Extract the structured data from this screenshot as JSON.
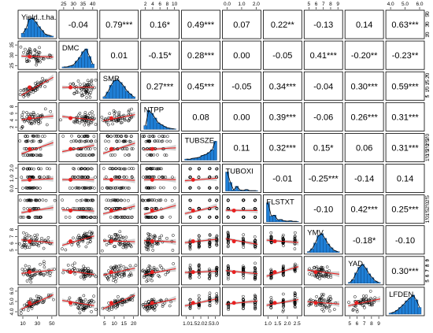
{
  "chart_data": {
    "type": "correlation-matrix",
    "variables": [
      "Yield..t.ha.",
      "DMC",
      "SMR",
      "NTPP",
      "TUBSZE",
      "TUBOXI",
      "FLSTXT",
      "YMV",
      "YAD",
      "LFDEN"
    ],
    "correlations": [
      [
        "",
        "-0.04",
        "0.79***",
        "0.16*",
        "0.49***",
        "0.07",
        "0.22**",
        "-0.13",
        "0.14",
        "0.63***"
      ],
      [
        "",
        "",
        "0.01",
        "-0.15*",
        "0.28***",
        "0.00",
        "-0.05",
        "0.41***",
        "-0.20**",
        "-0.23**"
      ],
      [
        "",
        "",
        "",
        "0.27***",
        "0.45***",
        "-0.05",
        "0.34***",
        "-0.04",
        "0.30***",
        "0.59***"
      ],
      [
        "",
        "",
        "",
        "",
        "0.08",
        "0.00",
        "0.39***",
        "-0.06",
        "0.26***",
        "0.31***"
      ],
      [
        "",
        "",
        "",
        "",
        "",
        "0.11",
        "0.32***",
        "0.15*",
        "0.06",
        "0.31***"
      ],
      [
        "",
        "",
        "",
        "",
        "",
        "",
        "-0.01",
        "-0.25***",
        "-0.14",
        "0.14"
      ],
      [
        "",
        "",
        "",
        "",
        "",
        "",
        "",
        "-0.10",
        "0.42***",
        "0.25***"
      ],
      [
        "",
        "",
        "",
        "",
        "",
        "",
        "",
        "",
        "-0.18*",
        "-0.10"
      ],
      [
        "",
        "",
        "",
        "",
        "",
        "",
        "",
        "",
        "",
        "0.30***"
      ],
      [
        "",
        "",
        "",
        "",
        "",
        "",
        "",
        "",
        "",
        ""
      ]
    ],
    "top_axis_ticks": [
      [],
      [
        "25",
        "30",
        "35",
        "40"
      ],
      [],
      [
        "2",
        "4",
        "6",
        "8",
        "10"
      ],
      [],
      [
        "0.0",
        "1.0",
        "2.0"
      ],
      [],
      [
        "5",
        "6",
        "7",
        "8",
        "9"
      ],
      [],
      [
        "4.0",
        "5.0",
        "6.0"
      ]
    ],
    "bottom_axis_ticks": [
      [
        "10",
        "30",
        "50"
      ],
      [],
      [
        "5",
        "10",
        "15",
        "20"
      ],
      [],
      [
        "1.0",
        "1.5",
        "2.0",
        "2.5",
        "3.0"
      ],
      [],
      [
        "1.0",
        "1.5",
        "2.0",
        "2.5"
      ],
      [],
      [
        "5",
        "6",
        "7",
        "8",
        "9"
      ],
      []
    ],
    "left_axis_ticks": [
      [],
      [
        "25",
        "30",
        "35"
      ],
      [],
      [
        "2",
        "4",
        "6",
        "8"
      ],
      [],
      [
        "0.0",
        "1.0",
        "2.0"
      ],
      [],
      [
        "5",
        "6",
        "7",
        "8"
      ],
      [],
      [
        "4.0",
        "5.0",
        "6.0"
      ]
    ],
    "right_axis_ticks": [
      [
        "10",
        "30",
        "50"
      ],
      [],
      [
        "5",
        "10",
        "15",
        "20"
      ],
      [],
      [
        "1.0",
        "1.5",
        "2.0",
        "2.5",
        "3.0"
      ],
      [],
      [
        "1.0",
        "1.5",
        "2.0",
        "2.5"
      ],
      [],
      [
        "5",
        "6",
        "7",
        "8",
        "9"
      ],
      []
    ],
    "colors": {
      "histogram": "#1f7fd6",
      "density": "#000000",
      "points": "#000000",
      "smooth_line": "#e82020",
      "confidence_band": "#c8c8c8",
      "panel_border": "#000000"
    }
  }
}
